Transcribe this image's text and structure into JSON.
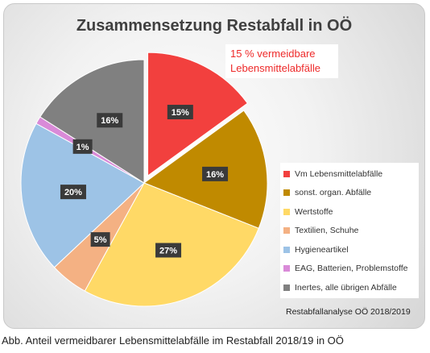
{
  "chart_data": {
    "type": "pie",
    "title": "Zusammensetzung Restabfall in OÖ",
    "annotation": "15 % vermeidbare\nLebensmittelabfälle",
    "source": "Restabfallanalyse OÖ 2018/2019",
    "legend_position": "right",
    "exploded_slice": "Vm Lebensmittelabfälle",
    "slices": [
      {
        "label": "Vm Lebensmittelabfälle",
        "value": 15,
        "value_label": "15%",
        "color": "#f2403e"
      },
      {
        "label": "sonst. organ. Abfälle",
        "value": 16,
        "value_label": "16%",
        "color": "#c08a00"
      },
      {
        "label": "Wertstoffe",
        "value": 27,
        "value_label": "27%",
        "color": "#ffd966"
      },
      {
        "label": "Textilien, Schuhe",
        "value": 5,
        "value_label": "5%",
        "color": "#f4b183"
      },
      {
        "label": "Hygieneartikel",
        "value": 20,
        "value_label": "20%",
        "color": "#9dc3e6"
      },
      {
        "label": "EAG, Batterien, Problemstoffe",
        "value": 1,
        "value_label": "1%",
        "color": "#d98ad8"
      },
      {
        "label": "Inertes, alle übrigen Abfälle",
        "value": 16,
        "value_label": "16%",
        "color": "#808080"
      }
    ]
  },
  "caption": "Abb. Anteil vermeidbarer Lebensmittelabfälle im Restabfall 2018/19 in OÖ"
}
